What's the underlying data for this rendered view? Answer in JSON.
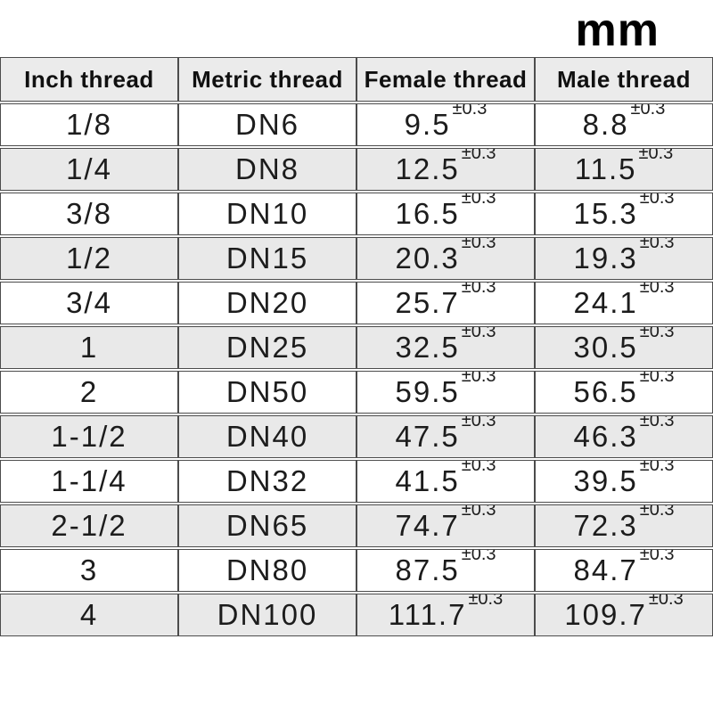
{
  "unit_label": "mm",
  "chart_data": {
    "type": "table",
    "unit": "mm",
    "columns": [
      "Inch thread",
      "Metric thread",
      "Female thread",
      "Male thread"
    ],
    "tolerance": "±0.3",
    "rows": [
      [
        "1/8",
        "DN6",
        "9.5",
        "8.8"
      ],
      [
        "1/4",
        "DN8",
        "12.5",
        "11.5"
      ],
      [
        "3/8",
        "DN10",
        "16.5",
        "15.3"
      ],
      [
        "1/2",
        "DN15",
        "20.3",
        "19.3"
      ],
      [
        "3/4",
        "DN20",
        "25.7",
        "24.1"
      ],
      [
        "1",
        "DN25",
        "32.5",
        "30.5"
      ],
      [
        "2",
        "DN50",
        "59.5",
        "56.5"
      ],
      [
        "1-1/2",
        "DN40",
        "47.5",
        "46.3"
      ],
      [
        "1-1/4",
        "DN32",
        "41.5",
        "39.5"
      ],
      [
        "2-1/2",
        "DN65",
        "74.7",
        "72.3"
      ],
      [
        "3",
        "DN80",
        "87.5",
        "84.7"
      ],
      [
        "4",
        "DN100",
        "111.7",
        "109.7"
      ]
    ]
  },
  "colors": {
    "background": "#ffffff",
    "border": "#4c4c4c",
    "header_bg": "#ebebeb",
    "stripe_bg": "#e9e9e9",
    "text": "#1c1c1c"
  }
}
